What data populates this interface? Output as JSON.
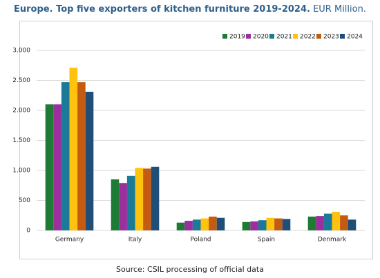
{
  "chart_data": {
    "type": "bar",
    "title": "Europe. Top five exporters of kitchen furniture 2019-2024.",
    "unit": "EUR Million.",
    "source": "Source: CSIL processing of official data",
    "categories": [
      "Germany",
      "Italy",
      "Poland",
      "Spain",
      "Denmark"
    ],
    "series": [
      {
        "name": "2019",
        "color": "#1e7b34",
        "values": [
          2100,
          850,
          130,
          140,
          230
        ]
      },
      {
        "name": "2020",
        "color": "#9b2f9e",
        "values": [
          2100,
          790,
          160,
          150,
          240
        ]
      },
      {
        "name": "2021",
        "color": "#1b7a99",
        "values": [
          2470,
          910,
          180,
          170,
          280
        ]
      },
      {
        "name": "2022",
        "color": "#ffc20e",
        "values": [
          2710,
          1040,
          200,
          210,
          310
        ]
      },
      {
        "name": "2023",
        "color": "#c55a11",
        "values": [
          2470,
          1030,
          230,
          200,
          250
        ]
      },
      {
        "name": "2024",
        "color": "#1f4e79",
        "values": [
          2310,
          1060,
          210,
          190,
          180
        ]
      }
    ],
    "ylim": [
      0,
      3000
    ],
    "yticks": [
      0,
      500,
      {
        "value": 1000,
        "label": "1.000"
      },
      {
        "value": 1500,
        "label": "1.500"
      },
      {
        "value": 2000,
        "label": "2.000"
      },
      {
        "value": 2500,
        "label": "2.500"
      },
      {
        "value": 3000,
        "label": "3.000"
      }
    ],
    "grid": true,
    "legend": "top-right"
  }
}
